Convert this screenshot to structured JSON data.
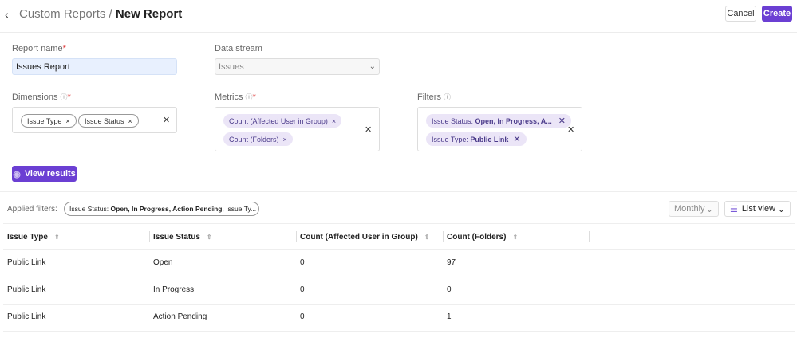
{
  "header": {
    "breadcrumb_parent": "Custom Reports",
    "separator": "/",
    "title": "New Report",
    "cancel_label": "Cancel",
    "create_label": "Create"
  },
  "form": {
    "report_name_label": "Report name",
    "report_name_value": "Issues Report",
    "data_stream_label": "Data stream",
    "data_stream_value": "Issues",
    "dimensions_label": "Dimensions",
    "dimensions": [
      "Issue Type",
      "Issue Status"
    ],
    "metrics_label": "Metrics",
    "metrics": [
      "Count (Affected User in Group)",
      "Count (Folders)"
    ],
    "filters_label": "Filters",
    "filters": [
      {
        "key": "Issue Status:",
        "value": "Open, In Progress, A..."
      },
      {
        "key": "Issue Type:",
        "value": "Public Link"
      }
    ],
    "required_mark": "*",
    "view_results_label": "View results"
  },
  "results": {
    "applied_filters_label": "Applied filters:",
    "applied_filter_key": "Issue Status:",
    "applied_filter_value": "Open, In Progress, Action Pending",
    "applied_filter_rest": ", Issue Ty...",
    "period": "Monthly",
    "view_mode": "List view",
    "columns": [
      "Issue Type",
      "Issue Status",
      "Count (Affected User in Group)",
      "Count (Folders)"
    ],
    "rows": [
      [
        "Public Link",
        "Open",
        "0",
        "97"
      ],
      [
        "Public Link",
        "In Progress",
        "0",
        "0"
      ],
      [
        "Public Link",
        "Action Pending",
        "0",
        "1"
      ]
    ]
  },
  "colors": {
    "accent": "#6b3fd3",
    "chip_bg": "#ebe5f7",
    "required": "#dd3333"
  }
}
